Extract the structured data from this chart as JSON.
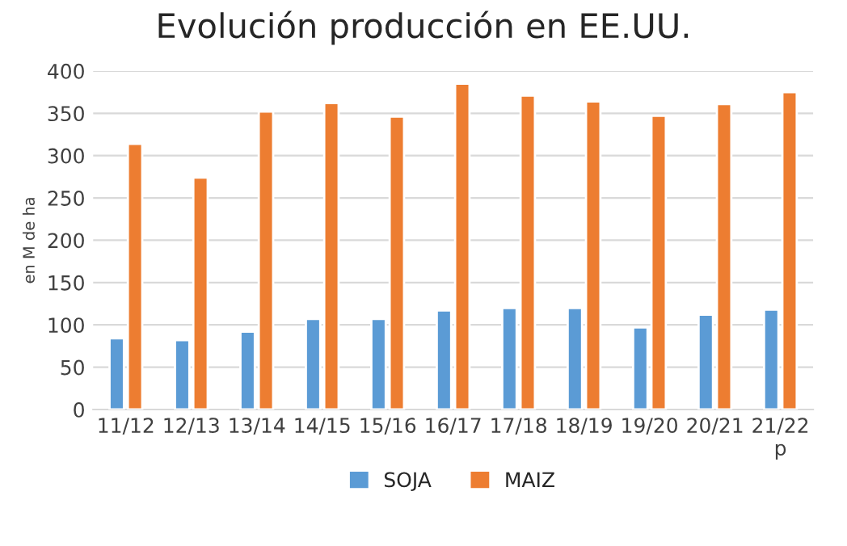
{
  "chart_data": {
    "type": "bar",
    "title": "Evolución producción en EE.UU.",
    "ylabel": "en M de ha",
    "categories": [
      "11/12",
      "12/13",
      "13/14",
      "14/15",
      "15/16",
      "16/17",
      "17/18",
      "18/19",
      "19/20",
      "20/21",
      "21/22\np"
    ],
    "series": [
      {
        "name": "SOJA",
        "color": "#5b9bd5",
        "values": [
          84,
          82,
          92,
          107,
          107,
          117,
          120,
          120,
          97,
          112,
          118
        ]
      },
      {
        "name": "MAIZ",
        "color": "#ed7d31",
        "values": [
          314,
          274,
          352,
          362,
          346,
          385,
          371,
          364,
          347,
          361,
          375
        ]
      }
    ],
    "ylim": [
      0,
      400
    ],
    "yticks": [
      0,
      50,
      100,
      150,
      200,
      250,
      300,
      350,
      400
    ],
    "grid": "y",
    "legend": "bottom"
  }
}
